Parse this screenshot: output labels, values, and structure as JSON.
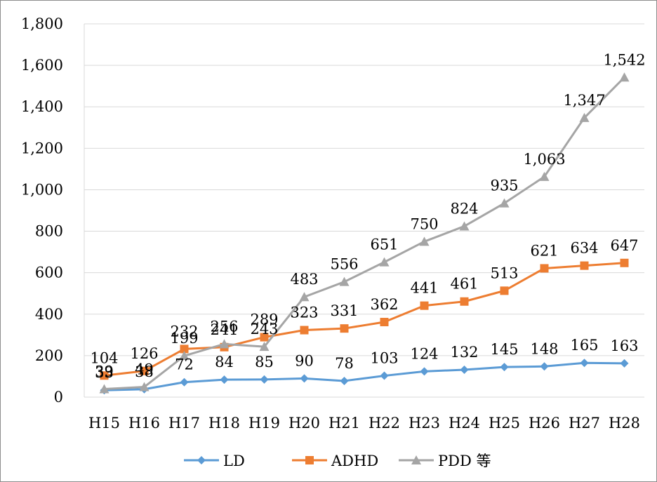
{
  "chart_data": {
    "type": "line",
    "categories": [
      "H15",
      "H16",
      "H17",
      "H18",
      "H19",
      "H20",
      "H21",
      "H22",
      "H23",
      "H24",
      "H25",
      "H26",
      "H27",
      "H28"
    ],
    "ylim": [
      0,
      1800
    ],
    "yticks": [
      "0",
      "200",
      "400",
      "600",
      "800",
      "1,000",
      "1,200",
      "1,400",
      "1,600",
      "1,800"
    ],
    "grid": true,
    "legend_position": "bottom",
    "series": [
      {
        "name": "LD",
        "color": "#5b9bd5",
        "marker": "diamond",
        "values": [
          33,
          38,
          72,
          84,
          85,
          90,
          78,
          103,
          124,
          132,
          145,
          148,
          165,
          163
        ],
        "labels": [
          "33",
          "38",
          "72",
          "84",
          "85",
          "90",
          "78",
          "103",
          "124",
          "132",
          "145",
          "148",
          "165",
          "163"
        ]
      },
      {
        "name": "ADHD",
        "color": "#ed7d31",
        "marker": "square",
        "values": [
          104,
          126,
          232,
          241,
          289,
          323,
          331,
          362,
          441,
          461,
          513,
          621,
          634,
          647
        ],
        "labels": [
          "104",
          "126",
          "232",
          "241",
          "289",
          "323",
          "331",
          "362",
          "441",
          "461",
          "513",
          "621",
          "634",
          "647"
        ]
      },
      {
        "name": "PDD 等",
        "color": "#a5a5a5",
        "marker": "triangle",
        "values": [
          39,
          49,
          199,
          256,
          243,
          483,
          556,
          651,
          750,
          824,
          935,
          1063,
          1347,
          1542
        ],
        "labels": [
          "39",
          "49",
          "199",
          "256",
          "243",
          "483",
          "556",
          "651",
          "750",
          "824",
          "935",
          "1,063",
          "1,347",
          "1,542"
        ]
      }
    ]
  }
}
